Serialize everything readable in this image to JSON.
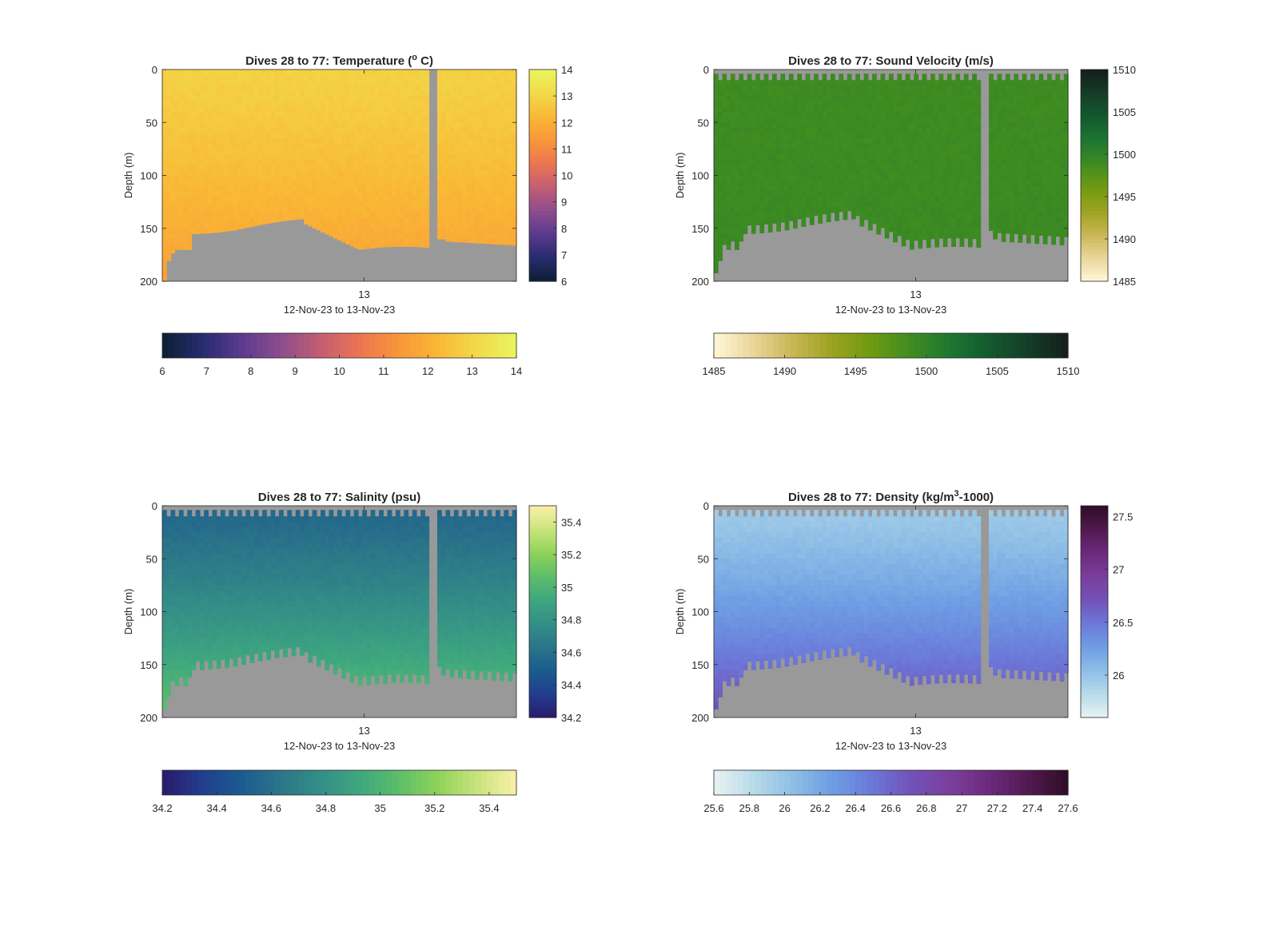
{
  "figure": {
    "background": "#ffffff",
    "seafloor_color": "#999999",
    "xlabel": "12-Nov-23 to 13-Nov-23",
    "xtick_label": "13",
    "ylabel": "Depth (m)",
    "yticks": [
      0,
      50,
      100,
      150,
      200
    ]
  },
  "chart_data": [
    {
      "type": "heatmap",
      "title": "Dives 28 to 77: Temperature (",
      "title_sup": "o",
      "title_end": " C)",
      "xlabel": "12-Nov-23 to 13-Nov-23",
      "ylabel": "Depth (m)",
      "ylim": [
        200,
        0
      ],
      "clim": [
        6,
        14
      ],
      "colormap": [
        "#0b1f33",
        "#272b6e",
        "#5a3a8f",
        "#8c4d8c",
        "#c25e73",
        "#ec7452",
        "#f8963a",
        "#f9b835",
        "#f2d94a",
        "#e9f560"
      ],
      "colorbar_ticks": [
        6,
        7,
        8,
        9,
        10,
        11,
        12,
        13,
        14
      ],
      "colorbar_hticks": [
        6,
        7,
        8,
        9,
        10,
        11,
        12,
        13,
        14
      ],
      "surface_value": 12.9,
      "bottom_value": 11.6
    },
    {
      "type": "heatmap",
      "title": "Dives 28 to 77: Sound Velocity (m/s)",
      "title_sup": "",
      "title_end": "",
      "xlabel": "12-Nov-23 to 13-Nov-23",
      "ylabel": "Depth (m)",
      "ylim": [
        200,
        0
      ],
      "clim": [
        1485,
        1510
      ],
      "colormap": [
        "#fef8d6",
        "#ebd69a",
        "#c9b655",
        "#9da31f",
        "#6e9a12",
        "#3f8c21",
        "#1f7631",
        "#135a2f",
        "#143d27",
        "#141f1a"
      ],
      "colorbar_ticks": [
        1490,
        1495,
        1500,
        1505,
        1510
      ],
      "colorbar_hticks": [
        1485,
        1490,
        1495,
        1500,
        1505,
        1510
      ],
      "cb_bottom_label": "1485",
      "surface_value": 1499.0,
      "bottom_value": 1499.3
    },
    {
      "type": "heatmap",
      "title": "Dives 28 to 77: Salinity (psu)",
      "title_sup": "",
      "title_end": "",
      "xlabel": "12-Nov-23 to 13-Nov-23",
      "ylabel": "Depth (m)",
      "ylim": [
        200,
        0
      ],
      "clim": [
        34.2,
        35.5
      ],
      "colormap": [
        "#2a1a6b",
        "#223d8f",
        "#1b5b8f",
        "#2b7589",
        "#348e87",
        "#3ea67f",
        "#5cbd6a",
        "#8fd25a",
        "#c8e47c",
        "#faf0a6"
      ],
      "colorbar_ticks": [
        34.2,
        34.4,
        34.6,
        34.8,
        35,
        35.2,
        35.4
      ],
      "colorbar_hticks": [
        34.2,
        34.4,
        34.6,
        34.8,
        35,
        35.2,
        35.4
      ],
      "surface_value": 34.55,
      "bottom_value": 35.1
    },
    {
      "type": "heatmap",
      "title": "Dives 28 to 77: Density (kg/m",
      "title_sup": "3",
      "title_end": "-1000)",
      "xlabel": "12-Nov-23 to 13-Nov-23",
      "ylabel": "Depth (m)",
      "ylim": [
        200,
        0
      ],
      "clim": [
        25.6,
        27.6
      ],
      "colormap": [
        "#e8f3f3",
        "#b8dbea",
        "#8fbfe6",
        "#6e9ee3",
        "#6b79d9",
        "#7352b8",
        "#7a3e9c",
        "#6c2a7c",
        "#52194f",
        "#2e0d26"
      ],
      "colorbar_ticks": [
        26,
        26.5,
        27,
        27.5
      ],
      "colorbar_hticks": [
        25.6,
        25.8,
        26,
        26.2,
        26.4,
        26.6,
        26.8,
        27,
        27.2,
        27.4,
        27.6
      ],
      "surface_value": 25.95,
      "bottom_value": 26.75
    }
  ]
}
